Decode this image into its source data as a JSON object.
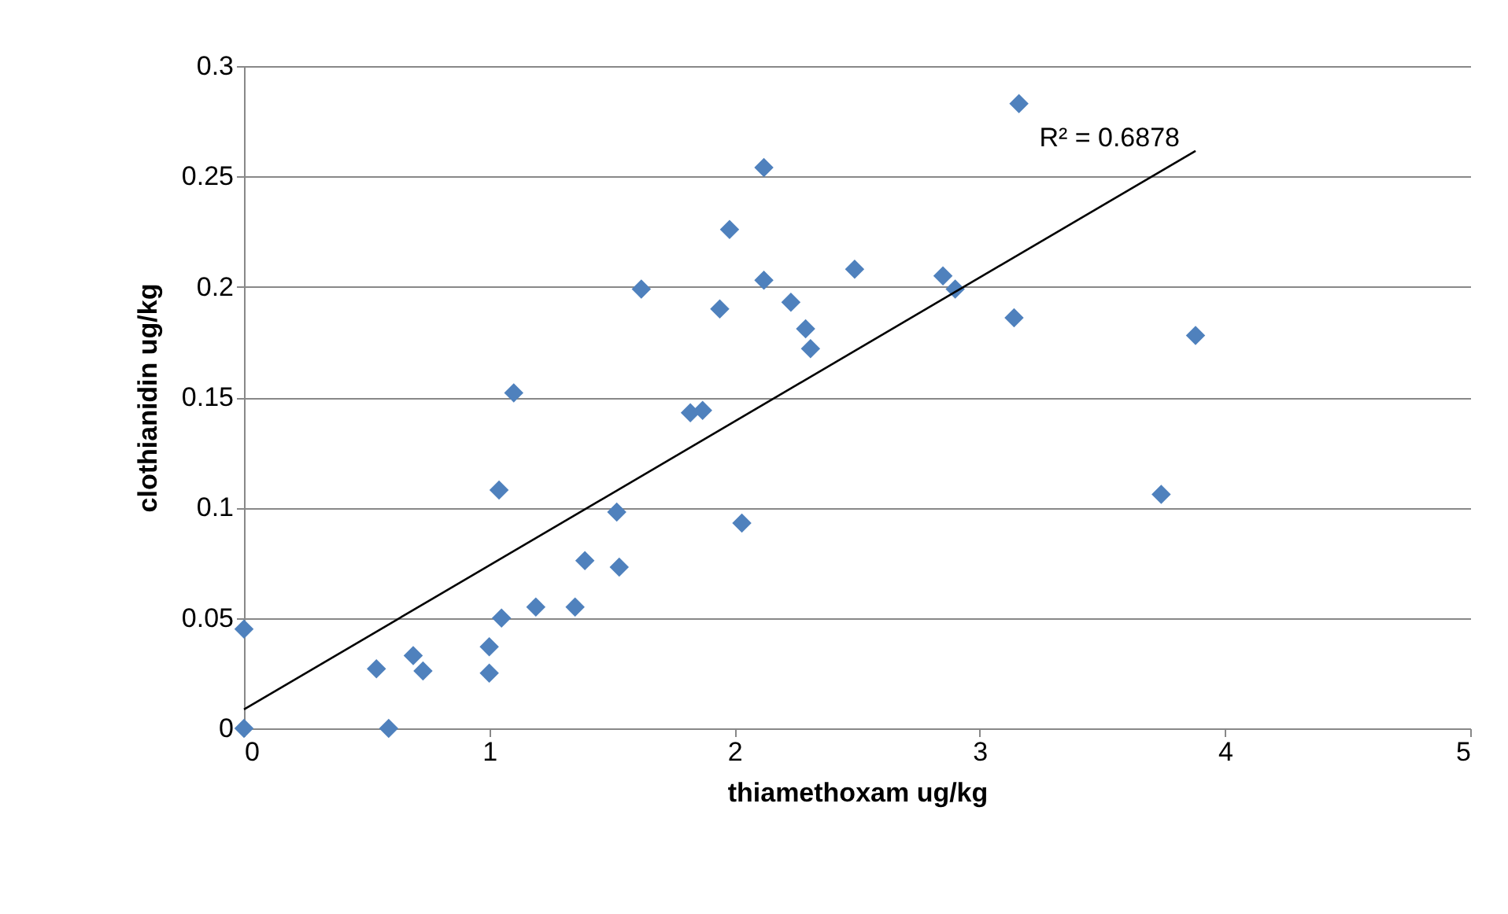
{
  "chart_data": {
    "type": "scatter",
    "xlabel": "thiamethoxam ug/kg",
    "ylabel": "clothianidin ug/kg",
    "xlim": [
      0,
      5
    ],
    "xticks": [
      0,
      1,
      2,
      3,
      4,
      5
    ],
    "ylim": [
      0,
      0.3
    ],
    "yticks": [
      0,
      0.05,
      0.1,
      0.15,
      0.2,
      0.25,
      0.3
    ],
    "grid": "y",
    "series": [
      {
        "color": "#4f81bd",
        "marker": "diamond",
        "x": [
          0,
          0,
          0.54,
          0.59,
          0.69,
          0.73,
          1.0,
          1.0,
          1.05,
          1.04,
          1.1,
          1.19,
          1.35,
          1.39,
          1.52,
          1.53,
          1.62,
          1.82,
          1.87,
          1.94,
          1.98,
          2.03,
          2.12,
          2.12,
          2.23,
          2.29,
          2.31,
          2.49,
          2.85,
          2.9,
          3.16,
          3.14,
          3.74,
          3.88
        ],
        "values": [
          0.045,
          0,
          0.027,
          0,
          0.033,
          0.026,
          0.025,
          0.037,
          0.05,
          0.108,
          0.152,
          0.055,
          0.055,
          0.076,
          0.098,
          0.073,
          0.199,
          0.143,
          0.144,
          0.19,
          0.226,
          0.093,
          0.254,
          0.203,
          0.193,
          0.181,
          0.172,
          0.208,
          0.205,
          0.199,
          0.283,
          0.186,
          0.106,
          0.178
        ]
      },
      {
        "type": "line",
        "marker": "none",
        "color": "#000000",
        "x": [
          0,
          3.88
        ],
        "values": [
          0.0086,
          0.2616
        ]
      }
    ],
    "annotations": [
      "R² = 0.6878"
    ]
  }
}
